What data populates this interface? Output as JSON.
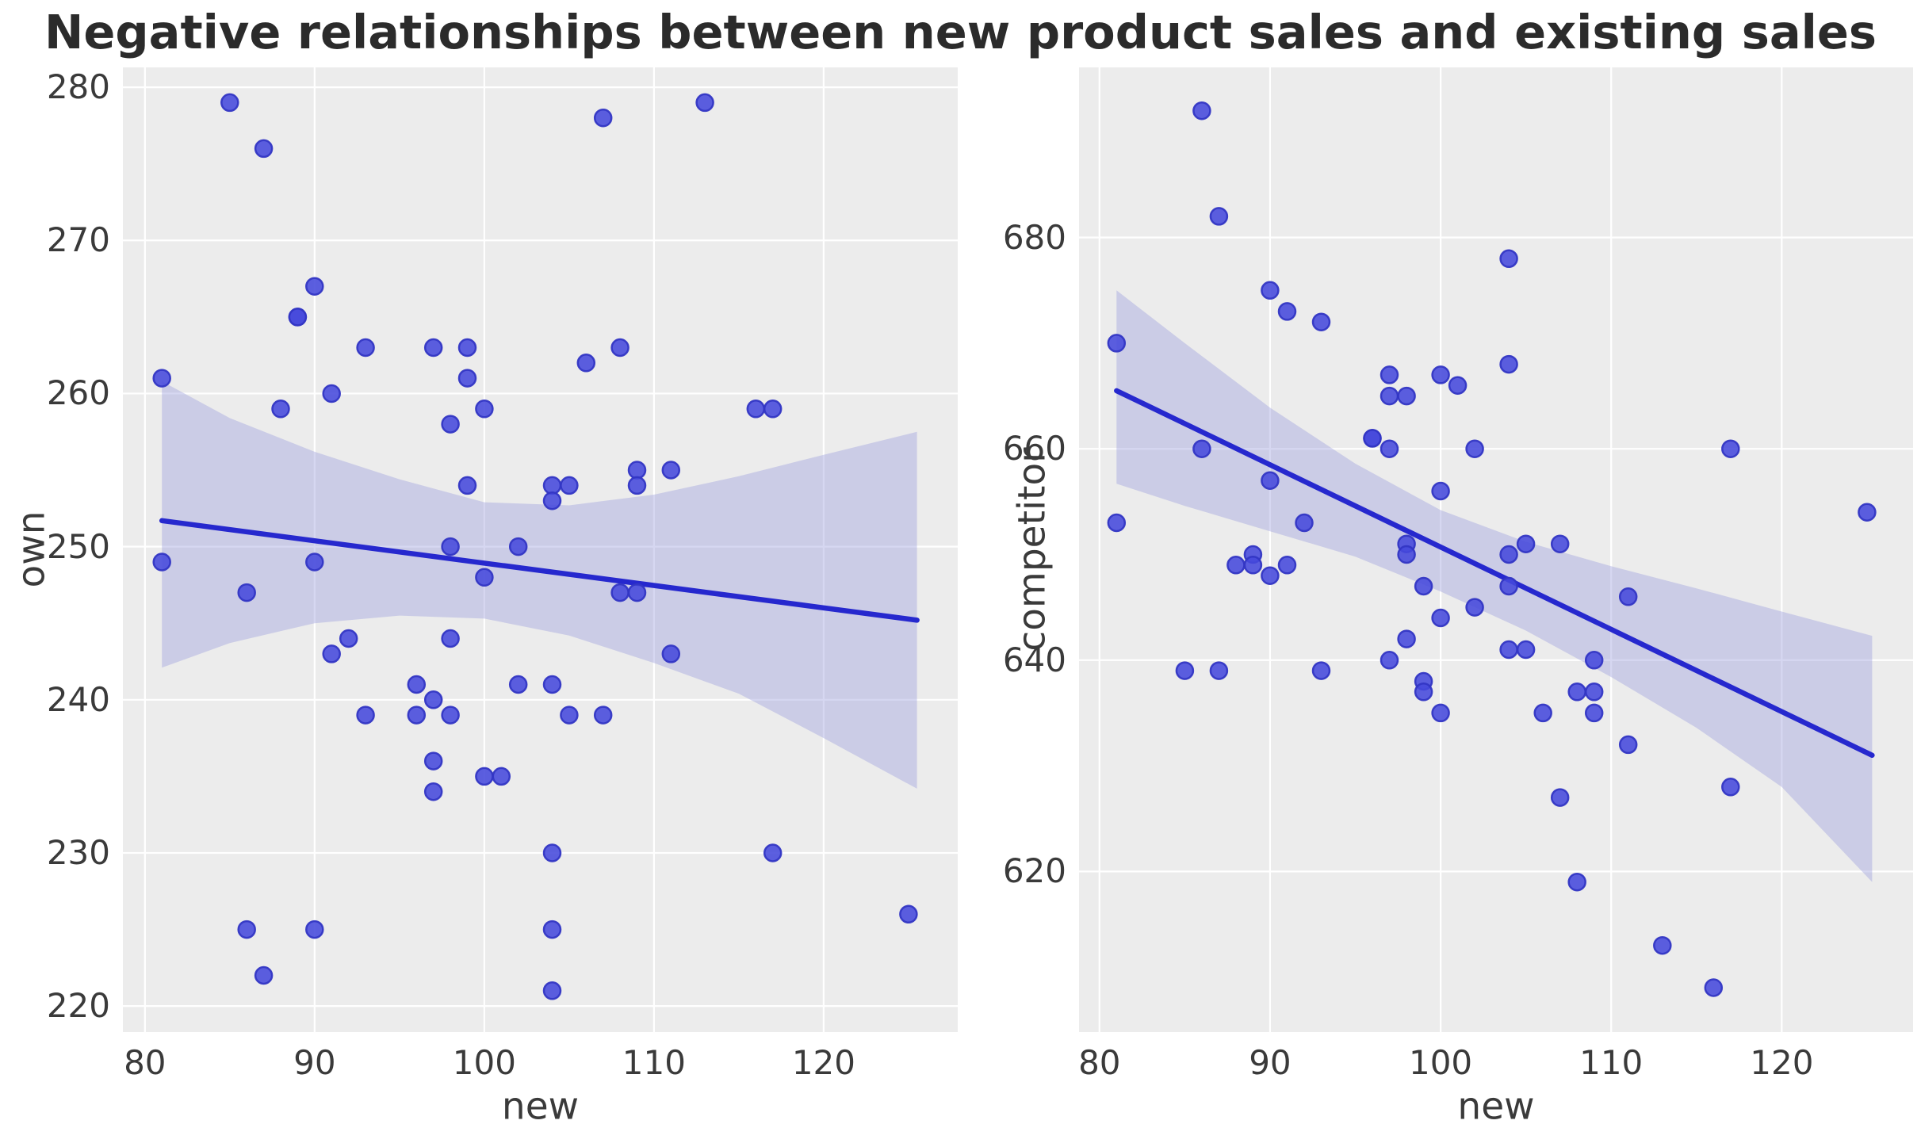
{
  "title": "Negative relationships between new product sales and existing sales",
  "colors": {
    "plot_background": "#ECECEC",
    "grid": "#FFFFFF",
    "point_fill": "#4649DC",
    "point_edge": "#3336C4",
    "regression_line": "#2628CE",
    "ci_band": "#A3A6E0",
    "title_text": "#2b2b2b",
    "tick_text": "#3a3a3a"
  },
  "chart_data": [
    {
      "type": "scatter",
      "xlabel": "new",
      "ylabel": "own",
      "x_ticks": [
        80,
        90,
        100,
        110,
        120
      ],
      "y_ticks": [
        220,
        230,
        240,
        250,
        260,
        270,
        280
      ],
      "xlim": [
        78.7,
        127.9
      ],
      "ylim": [
        218.3,
        281.3
      ],
      "grid": true,
      "points": [
        [
          81,
          261
        ],
        [
          81,
          249
        ],
        [
          85,
          279
        ],
        [
          86,
          247
        ],
        [
          86,
          225
        ],
        [
          87,
          276
        ],
        [
          87,
          222
        ],
        [
          88,
          259
        ],
        [
          89,
          265
        ],
        [
          89,
          265
        ],
        [
          90,
          267
        ],
        [
          90,
          249
        ],
        [
          90,
          225
        ],
        [
          91,
          260
        ],
        [
          91,
          243
        ],
        [
          92,
          244
        ],
        [
          93,
          263
        ],
        [
          93,
          239
        ],
        [
          96,
          241
        ],
        [
          96,
          239
        ],
        [
          97,
          263
        ],
        [
          97,
          240
        ],
        [
          97,
          236
        ],
        [
          97,
          234
        ],
        [
          98,
          258
        ],
        [
          98,
          250
        ],
        [
          98,
          244
        ],
        [
          98,
          239
        ],
        [
          99,
          263
        ],
        [
          99,
          261
        ],
        [
          99,
          254
        ],
        [
          100,
          259
        ],
        [
          100,
          248
        ],
        [
          100,
          235
        ],
        [
          101,
          235
        ],
        [
          102,
          250
        ],
        [
          102,
          241
        ],
        [
          104,
          254
        ],
        [
          104,
          253
        ],
        [
          104,
          241
        ],
        [
          104,
          230
        ],
        [
          104,
          225
        ],
        [
          104,
          221
        ],
        [
          105,
          254
        ],
        [
          105,
          239
        ],
        [
          106,
          262
        ],
        [
          107,
          278
        ],
        [
          107,
          239
        ],
        [
          108,
          263
        ],
        [
          108,
          247
        ],
        [
          109,
          255
        ],
        [
          109,
          254
        ],
        [
          109,
          247
        ],
        [
          111,
          255
        ],
        [
          111,
          243
        ],
        [
          113,
          279
        ],
        [
          116,
          259
        ],
        [
          117,
          259
        ],
        [
          117,
          230
        ],
        [
          125,
          226
        ]
      ],
      "reg_line": {
        "x": [
          81,
          125.5
        ],
        "y": [
          251.7,
          245.2
        ]
      },
      "ci_upper": [
        [
          81,
          260.8
        ],
        [
          85,
          258.4
        ],
        [
          90,
          256.2
        ],
        [
          95,
          254.4
        ],
        [
          100,
          252.9
        ],
        [
          105,
          252.7
        ],
        [
          110,
          253.4
        ],
        [
          115,
          254.6
        ],
        [
          120,
          256.0
        ],
        [
          125.5,
          257.5
        ]
      ],
      "ci_lower": [
        [
          81,
          242.1
        ],
        [
          85,
          243.7
        ],
        [
          90,
          245.0
        ],
        [
          95,
          245.5
        ],
        [
          100,
          245.3
        ],
        [
          105,
          244.2
        ],
        [
          110,
          242.4
        ],
        [
          115,
          240.4
        ],
        [
          120,
          237.5
        ],
        [
          125.5,
          234.2
        ]
      ]
    },
    {
      "type": "scatter",
      "xlabel": "new",
      "ylabel": "competitor",
      "x_ticks": [
        80,
        90,
        100,
        110,
        120
      ],
      "y_ticks": [
        620,
        640,
        660,
        680
      ],
      "xlim": [
        78.8,
        127.7
      ],
      "ylim": [
        604.8,
        696.1
      ],
      "grid": true,
      "points": [
        [
          81,
          670
        ],
        [
          81,
          653
        ],
        [
          85,
          639
        ],
        [
          86,
          692
        ],
        [
          86,
          660
        ],
        [
          87,
          682
        ],
        [
          87,
          639
        ],
        [
          88,
          649
        ],
        [
          89,
          650
        ],
        [
          89,
          649
        ],
        [
          90,
          675
        ],
        [
          90,
          657
        ],
        [
          90,
          648
        ],
        [
          91,
          673
        ],
        [
          91,
          649
        ],
        [
          92,
          653
        ],
        [
          93,
          672
        ],
        [
          93,
          639
        ],
        [
          96,
          661
        ],
        [
          96,
          661
        ],
        [
          97,
          667
        ],
        [
          97,
          665
        ],
        [
          97,
          660
        ],
        [
          97,
          640
        ],
        [
          98,
          665
        ],
        [
          98,
          651
        ],
        [
          98,
          650
        ],
        [
          98,
          642
        ],
        [
          99,
          647
        ],
        [
          99,
          638
        ],
        [
          99,
          637
        ],
        [
          100,
          667
        ],
        [
          100,
          656
        ],
        [
          100,
          644
        ],
        [
          100,
          635
        ],
        [
          101,
          666
        ],
        [
          102,
          660
        ],
        [
          102,
          645
        ],
        [
          104,
          678
        ],
        [
          104,
          668
        ],
        [
          104,
          650
        ],
        [
          104,
          647
        ],
        [
          104,
          641
        ],
        [
          105,
          651
        ],
        [
          105,
          641
        ],
        [
          106,
          635
        ],
        [
          107,
          651
        ],
        [
          107,
          627
        ],
        [
          108,
          637
        ],
        [
          108,
          619
        ],
        [
          109,
          640
        ],
        [
          109,
          637
        ],
        [
          109,
          635
        ],
        [
          111,
          646
        ],
        [
          111,
          632
        ],
        [
          113,
          613
        ],
        [
          116,
          609
        ],
        [
          117,
          660
        ],
        [
          117,
          628
        ],
        [
          125,
          654
        ]
      ],
      "reg_line": {
        "x": [
          81,
          125.3
        ],
        "y": [
          665.5,
          631.0
        ]
      },
      "ci_upper": [
        [
          81,
          675.0
        ],
        [
          85,
          670.0
        ],
        [
          90,
          663.9
        ],
        [
          95,
          658.6
        ],
        [
          100,
          654.2
        ],
        [
          105,
          651.2
        ],
        [
          110,
          648.9
        ],
        [
          115,
          646.8
        ],
        [
          120,
          644.6
        ],
        [
          125.3,
          642.3
        ]
      ],
      "ci_lower": [
        [
          81,
          656.7
        ],
        [
          85,
          654.6
        ],
        [
          90,
          652.2
        ],
        [
          95,
          649.8
        ],
        [
          100,
          646.5
        ],
        [
          105,
          642.8
        ],
        [
          110,
          638.4
        ],
        [
          115,
          633.6
        ],
        [
          120,
          628.0
        ],
        [
          125.3,
          619.0
        ]
      ]
    }
  ]
}
